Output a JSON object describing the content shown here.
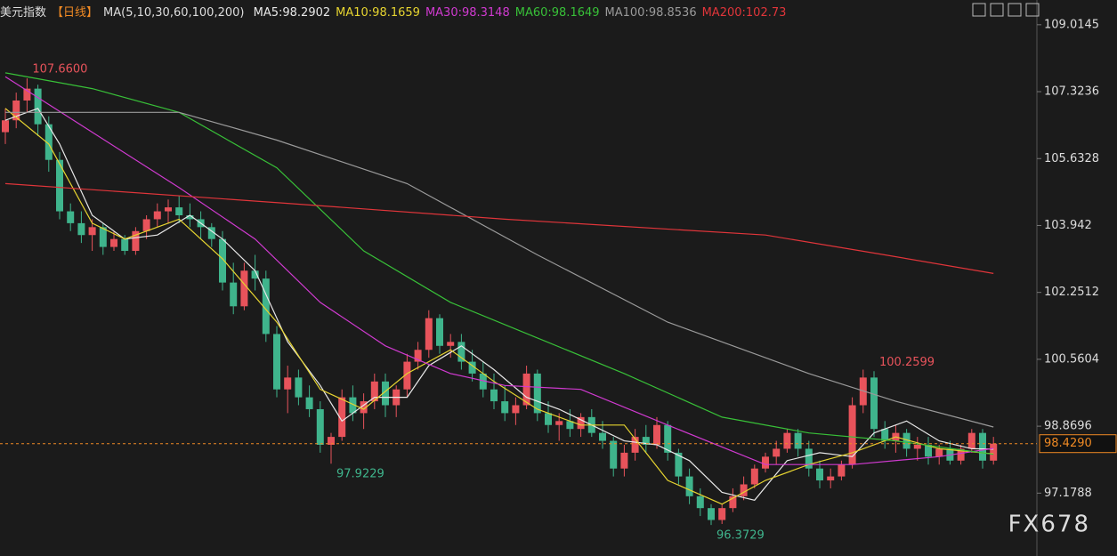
{
  "chart_data": {
    "type": "candlestick",
    "title": "美元指数",
    "period": "【日线】",
    "indicator": "MA(5,10,30,60,100,200)",
    "up_color": "#e8535b",
    "down_color": "#3fb48c",
    "ylim": [
      95.59,
      109.64
    ],
    "yticks": [
      109.0145,
      107.3236,
      105.6328,
      103.942,
      102.2512,
      100.5604,
      98.8696,
      97.1788
    ],
    "last_price": {
      "value": 98.429,
      "label": "98.4290"
    },
    "watermark": "FX678",
    "annotations": [
      "107.6600",
      "97.9229",
      "96.3729",
      "100.2599"
    ],
    "candles": [
      [
        106.3,
        106.9,
        106.0,
        106.6
      ],
      [
        106.6,
        107.3,
        106.4,
        107.1
      ],
      [
        107.1,
        107.66,
        106.8,
        107.4
      ],
      [
        107.4,
        107.5,
        106.2,
        106.5
      ],
      [
        106.5,
        106.7,
        105.3,
        105.6
      ],
      [
        105.6,
        105.8,
        104.1,
        104.3
      ],
      [
        104.3,
        104.5,
        103.8,
        104.0
      ],
      [
        104.0,
        104.3,
        103.5,
        103.7
      ],
      [
        103.7,
        104.1,
        103.3,
        103.9
      ],
      [
        103.9,
        104.0,
        103.2,
        103.4
      ],
      [
        103.4,
        103.8,
        103.3,
        103.6
      ],
      [
        103.6,
        103.7,
        103.2,
        103.3
      ],
      [
        103.3,
        103.9,
        103.2,
        103.8
      ],
      [
        103.8,
        104.2,
        103.6,
        104.1
      ],
      [
        104.1,
        104.5,
        103.9,
        104.3
      ],
      [
        104.3,
        104.6,
        104.0,
        104.4
      ],
      [
        104.4,
        104.7,
        104.0,
        104.2
      ],
      [
        104.2,
        104.5,
        103.9,
        104.1
      ],
      [
        104.1,
        104.3,
        103.6,
        103.9
      ],
      [
        103.9,
        104.0,
        103.4,
        103.6
      ],
      [
        103.6,
        103.8,
        102.3,
        102.5
      ],
      [
        102.5,
        103.0,
        101.7,
        101.9
      ],
      [
        101.9,
        103.0,
        101.8,
        102.8
      ],
      [
        102.8,
        103.2,
        102.3,
        102.6
      ],
      [
        102.6,
        102.8,
        101.0,
        101.2
      ],
      [
        101.2,
        101.4,
        99.6,
        99.8
      ],
      [
        99.8,
        100.4,
        99.2,
        100.1
      ],
      [
        100.1,
        100.3,
        99.4,
        99.6
      ],
      [
        99.6,
        99.9,
        99.1,
        99.3
      ],
      [
        99.3,
        99.5,
        98.2,
        98.4
      ],
      [
        98.4,
        98.7,
        97.9229,
        98.6
      ],
      [
        98.6,
        99.8,
        98.5,
        99.6
      ],
      [
        99.6,
        99.9,
        99.0,
        99.2
      ],
      [
        99.2,
        99.7,
        98.8,
        99.5
      ],
      [
        99.5,
        100.2,
        99.3,
        100.0
      ],
      [
        100.0,
        100.2,
        99.1,
        99.4
      ],
      [
        99.4,
        99.9,
        99.1,
        99.8
      ],
      [
        99.8,
        100.7,
        99.6,
        100.5
      ],
      [
        100.5,
        101.0,
        100.3,
        100.8
      ],
      [
        100.8,
        101.8,
        100.6,
        101.6
      ],
      [
        101.6,
        101.7,
        100.7,
        100.9
      ],
      [
        100.9,
        101.2,
        100.6,
        101.0
      ],
      [
        101.0,
        101.2,
        100.3,
        100.5
      ],
      [
        100.5,
        100.8,
        100.0,
        100.2
      ],
      [
        100.2,
        100.5,
        99.6,
        99.8
      ],
      [
        99.8,
        100.2,
        99.3,
        99.5
      ],
      [
        99.5,
        99.9,
        99.0,
        99.2
      ],
      [
        99.2,
        99.6,
        98.9,
        99.4
      ],
      [
        99.4,
        100.4,
        99.3,
        100.2
      ],
      [
        100.2,
        100.3,
        99.0,
        99.2
      ],
      [
        99.2,
        99.5,
        98.7,
        98.9
      ],
      [
        98.9,
        99.2,
        98.5,
        99.0
      ],
      [
        99.0,
        99.3,
        98.6,
        98.8
      ],
      [
        98.8,
        99.2,
        98.6,
        99.1
      ],
      [
        99.1,
        99.3,
        98.6,
        98.7
      ],
      [
        98.7,
        99.0,
        98.3,
        98.5
      ],
      [
        98.5,
        98.6,
        97.6,
        97.8
      ],
      [
        97.8,
        98.4,
        97.6,
        98.2
      ],
      [
        98.2,
        98.8,
        98.0,
        98.6
      ],
      [
        98.6,
        98.9,
        98.2,
        98.4
      ],
      [
        98.4,
        99.1,
        98.3,
        98.9
      ],
      [
        98.9,
        99.0,
        98.0,
        98.2
      ],
      [
        98.2,
        98.3,
        97.4,
        97.6
      ],
      [
        97.6,
        97.8,
        96.9,
        97.1
      ],
      [
        97.1,
        97.3,
        96.6,
        96.8
      ],
      [
        96.8,
        96.9,
        96.3729,
        96.5
      ],
      [
        96.5,
        96.9,
        96.4,
        96.8
      ],
      [
        96.8,
        97.3,
        96.7,
        97.1
      ],
      [
        97.1,
        97.6,
        97.0,
        97.4
      ],
      [
        97.4,
        97.9,
        97.3,
        97.8
      ],
      [
        97.8,
        98.2,
        97.7,
        98.1
      ],
      [
        98.1,
        98.5,
        97.9,
        98.3
      ],
      [
        98.3,
        98.8,
        98.2,
        98.7
      ],
      [
        98.7,
        98.8,
        98.1,
        98.3
      ],
      [
        98.3,
        98.5,
        97.6,
        97.8
      ],
      [
        97.8,
        98.0,
        97.3,
        97.5
      ],
      [
        97.5,
        97.8,
        97.3,
        97.6
      ],
      [
        97.6,
        98.0,
        97.5,
        97.9
      ],
      [
        97.9,
        99.6,
        97.8,
        99.4
      ],
      [
        99.4,
        100.3,
        99.2,
        100.1
      ],
      [
        100.1,
        100.2599,
        98.6,
        98.8
      ],
      [
        98.8,
        99.0,
        98.3,
        98.5
      ],
      [
        98.5,
        98.9,
        98.2,
        98.7
      ],
      [
        98.7,
        98.8,
        98.1,
        98.3
      ],
      [
        98.3,
        98.6,
        98.0,
        98.4
      ],
      [
        98.4,
        98.6,
        97.9,
        98.1
      ],
      [
        98.1,
        98.4,
        97.9,
        98.3
      ],
      [
        98.3,
        98.5,
        97.9,
        98.0
      ],
      [
        98.0,
        98.4,
        97.9,
        98.3
      ],
      [
        98.3,
        98.8,
        98.2,
        98.7
      ],
      [
        98.7,
        98.8,
        97.8,
        98.0
      ],
      [
        98.0,
        98.6,
        97.9,
        98.429
      ]
    ],
    "ma": [
      {
        "name": "MA5:98.2902",
        "color": "#e8e8e8",
        "x": [
          0,
          3,
          5,
          8,
          11,
          14,
          17,
          20,
          23,
          26,
          29,
          31,
          34,
          37,
          39,
          42,
          45,
          48,
          51,
          54,
          57,
          60,
          63,
          66,
          69,
          72,
          75,
          78,
          80,
          83,
          86,
          89,
          91
        ],
        "values": [
          106.6,
          106.9,
          106.0,
          104.2,
          103.6,
          103.7,
          104.2,
          103.6,
          102.8,
          101.0,
          99.9,
          99.0,
          99.6,
          99.6,
          100.4,
          100.9,
          100.3,
          99.6,
          99.3,
          98.9,
          98.5,
          98.4,
          98.0,
          97.2,
          97.0,
          98.0,
          98.2,
          98.1,
          98.7,
          99.0,
          98.5,
          98.3,
          98.29
        ]
      },
      {
        "name": "MA10:98.1659",
        "color": "#e6d430",
        "x": [
          0,
          4,
          8,
          11,
          16,
          20,
          25,
          29,
          33,
          37,
          41,
          45,
          49,
          53,
          57,
          61,
          66,
          70,
          74,
          78,
          82,
          86,
          91
        ],
        "values": [
          106.9,
          106.0,
          104.0,
          103.6,
          104.1,
          103.1,
          101.5,
          99.8,
          99.3,
          100.2,
          100.8,
          100.0,
          99.3,
          98.9,
          98.9,
          97.5,
          96.9,
          97.5,
          97.9,
          98.2,
          98.6,
          98.3,
          98.17
        ]
      },
      {
        "name": "MA30:98.3148",
        "color": "#d03ad0",
        "x": [
          0,
          8,
          16,
          23,
          29,
          35,
          41,
          46,
          53,
          61,
          70,
          78,
          86,
          91
        ],
        "values": [
          107.7,
          106.3,
          104.9,
          103.6,
          102.0,
          100.9,
          100.2,
          99.9,
          99.8,
          98.9,
          97.9,
          97.9,
          98.1,
          98.31
        ]
      },
      {
        "name": "MA60:98.1649",
        "color": "#38c038",
        "x": [
          0,
          8,
          16,
          25,
          33,
          41,
          49,
          57,
          66,
          74,
          82,
          91
        ],
        "values": [
          107.8,
          107.4,
          106.8,
          105.4,
          103.3,
          102.0,
          101.1,
          100.2,
          99.1,
          98.7,
          98.5,
          98.16
        ]
      },
      {
        "name": "MA100:98.8536",
        "color": "#9a9a9a",
        "x": [
          0,
          16,
          25,
          37,
          49,
          61,
          74,
          82,
          91
        ],
        "values": [
          106.8,
          106.8,
          106.1,
          105.0,
          103.2,
          101.5,
          100.2,
          99.5,
          98.85
        ]
      },
      {
        "name": "MA200:102.73",
        "color": "#e0353a",
        "x": [
          0,
          26,
          46,
          70,
          81,
          91
        ],
        "values": [
          105.0,
          104.5,
          104.1,
          103.7,
          103.2,
          102.73
        ]
      }
    ]
  }
}
